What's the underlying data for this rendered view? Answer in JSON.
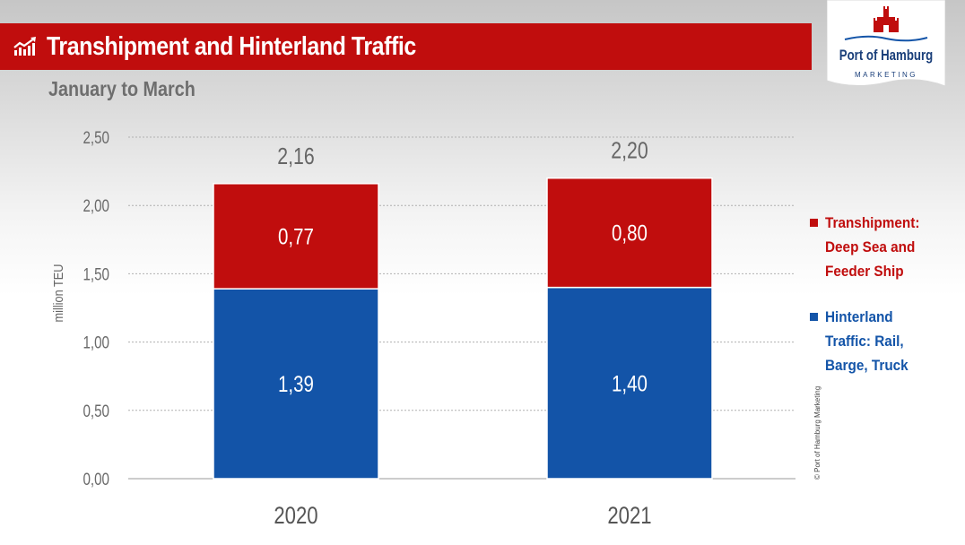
{
  "header": {
    "title": "Transhipment and Hinterland Traffic",
    "subtitle": "January to March"
  },
  "logo": {
    "name": "Port of Hamburg",
    "tagline": "MARKETING"
  },
  "copyright": "© Port of Hamburg Marketing",
  "colors": {
    "header_red": "#c00d0d",
    "transhipment": "#c00d0d",
    "hinterland": "#1354a8"
  },
  "chart_data": {
    "type": "bar",
    "stacked": true,
    "categories": [
      "2020",
      "2021"
    ],
    "series": [
      {
        "name": "Hinterland Traffic: Rail, Barge, Truck",
        "values": [
          1.39,
          1.4
        ],
        "labels": [
          "1,39",
          "1,40"
        ],
        "color": "#1354a8"
      },
      {
        "name": "Transhipment: Deep Sea and Feeder Ship",
        "values": [
          0.77,
          0.8
        ],
        "labels": [
          "0,77",
          "0,80"
        ],
        "color": "#c00d0d"
      }
    ],
    "totals": [
      2.16,
      2.2
    ],
    "total_labels": [
      "2,16",
      "2,20"
    ],
    "ylabel": "million TEU",
    "ylim": [
      0,
      2.5
    ],
    "yticks": [
      0,
      0.5,
      1.0,
      1.5,
      2.0,
      2.5
    ],
    "ytick_labels": [
      "0,00",
      "0,50",
      "1,00",
      "1,50",
      "2,00",
      "2,50"
    ],
    "grid": true,
    "legend_position": "right"
  }
}
